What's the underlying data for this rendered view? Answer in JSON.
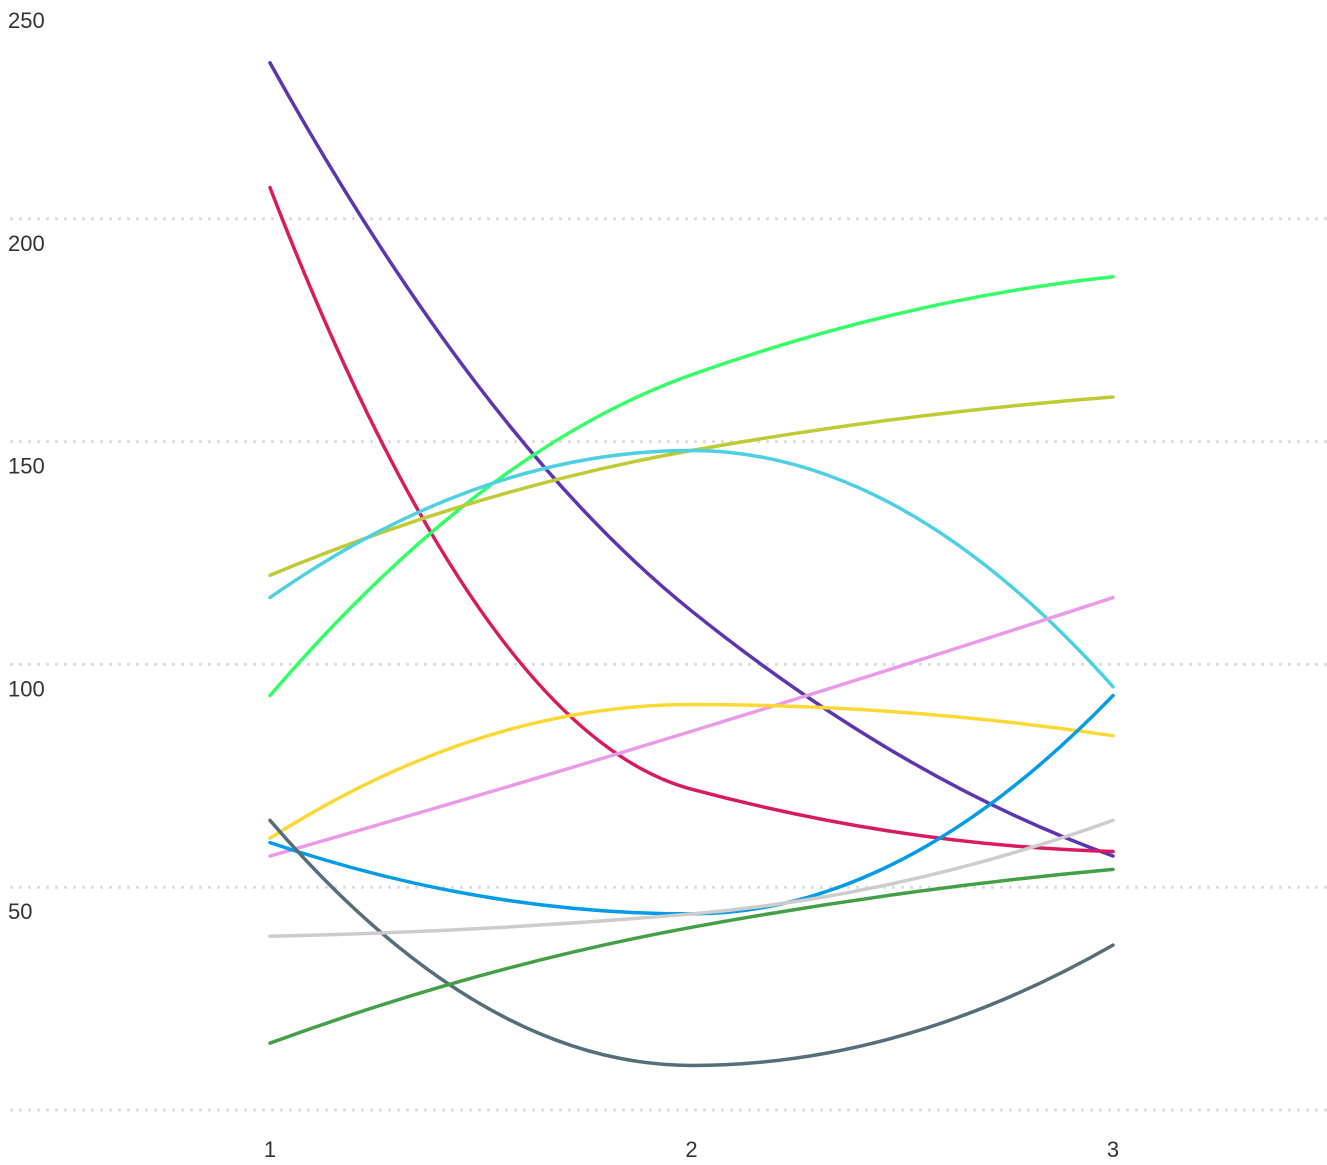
{
  "chart_data": {
    "type": "line",
    "title": "",
    "xlabel": "",
    "ylabel": "",
    "x": [
      1,
      2,
      3
    ],
    "x_tick_labels": [
      "1",
      "2",
      "3"
    ],
    "y_tick_labels": [
      "50",
      "100",
      "150",
      "200",
      "250"
    ],
    "ylim": [
      0,
      250
    ],
    "grid": true,
    "legend": "none",
    "series": [
      {
        "color": "#5e35b1",
        "values": [
          235,
          112,
          57
        ]
      },
      {
        "color": "#d81b60",
        "values": [
          207,
          72,
          58
        ]
      },
      {
        "color": "#33ff66",
        "values": [
          93,
          165,
          187
        ]
      },
      {
        "color": "#c0ca33",
        "values": [
          120,
          148,
          160
        ]
      },
      {
        "color": "#4dd0e1",
        "values": [
          115,
          148,
          95
        ]
      },
      {
        "color": "#ea9ae8",
        "values": [
          57,
          85,
          115
        ]
      },
      {
        "color": "#fdd835",
        "values": [
          61,
          91,
          84
        ]
      },
      {
        "color": "#039be5",
        "values": [
          60,
          44,
          93
        ]
      },
      {
        "color": "#546e7a",
        "values": [
          65,
          10,
          37
        ]
      },
      {
        "color": "#cccccc",
        "values": [
          39,
          44,
          65
        ]
      },
      {
        "color": "#43a047",
        "values": [
          15,
          41,
          54
        ]
      }
    ]
  }
}
